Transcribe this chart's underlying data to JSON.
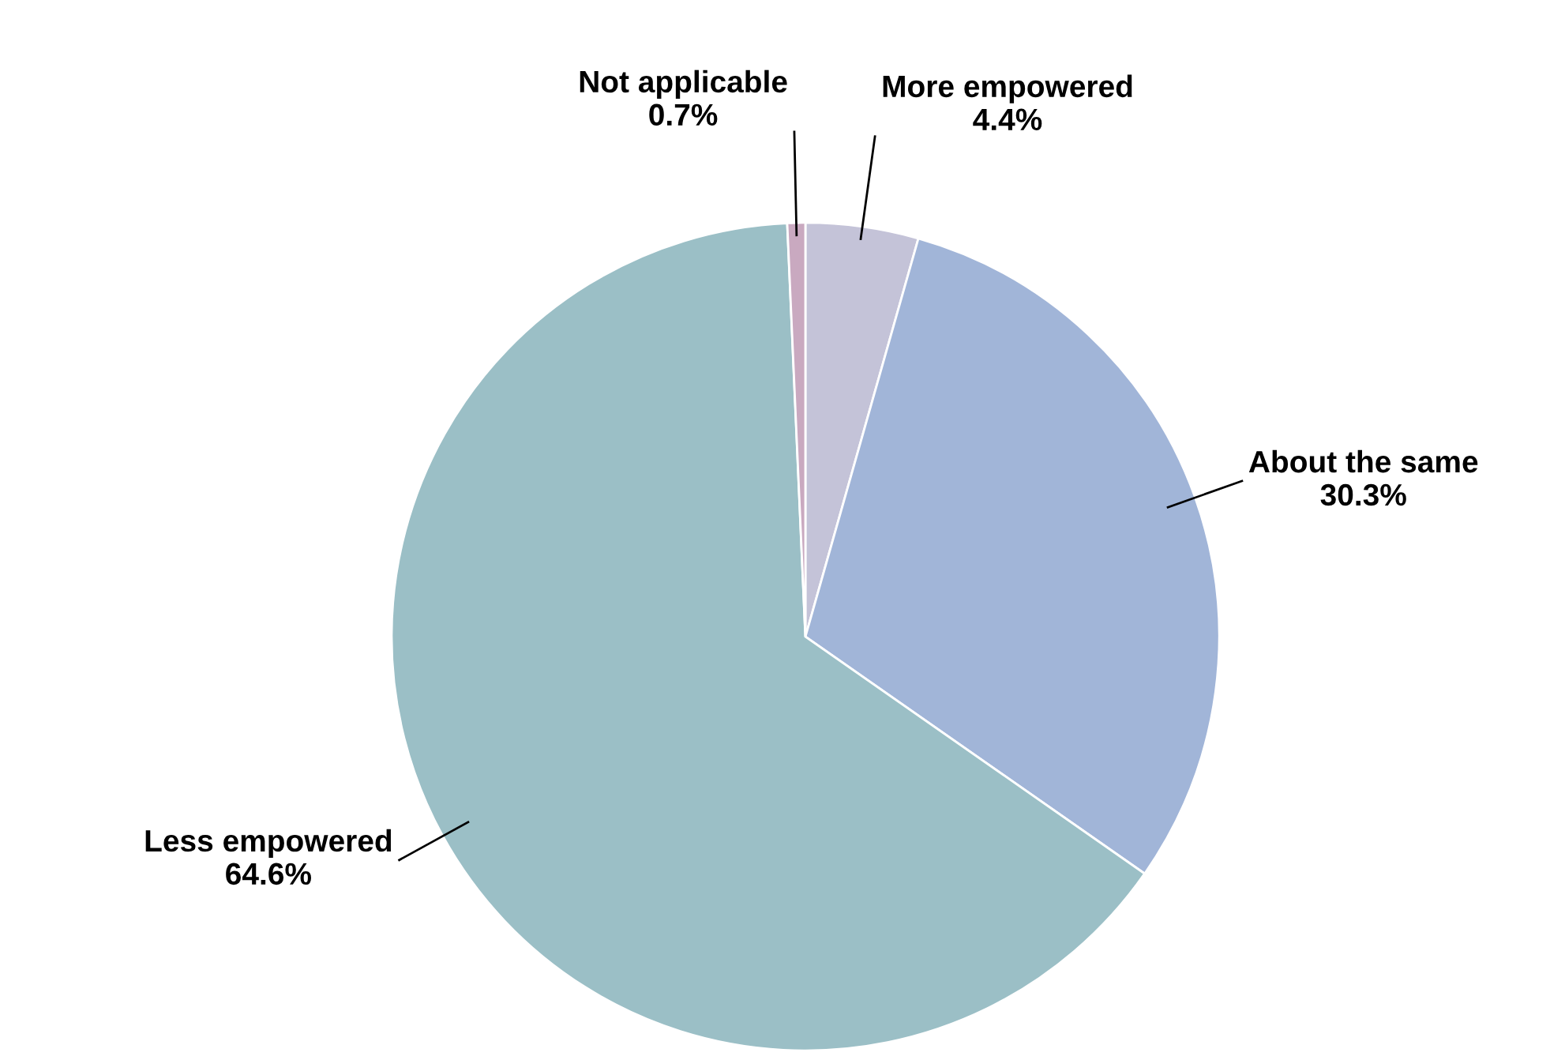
{
  "chart_data": {
    "type": "pie",
    "categories": [
      "More empowered",
      "About the same",
      "Less empowered",
      "Not applicable"
    ],
    "values": [
      4.4,
      30.3,
      64.6,
      0.7
    ],
    "value_labels": [
      "4.4%",
      "30.3%",
      "64.6%",
      "0.7%"
    ],
    "colors": [
      "#c4c3d8",
      "#a1b5d8",
      "#9bbfc6",
      "#c9a9c0"
    ]
  }
}
